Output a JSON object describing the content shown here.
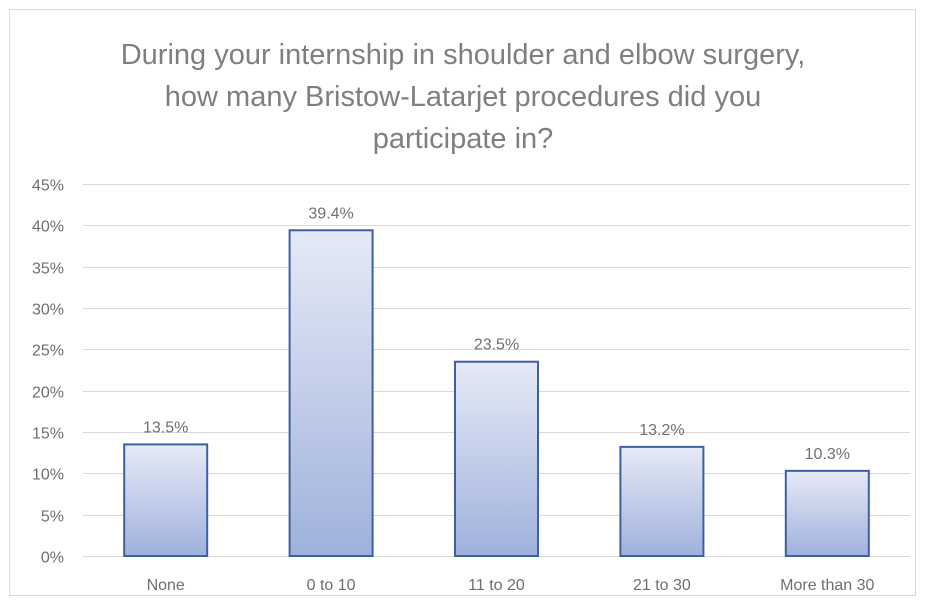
{
  "chart_data": {
    "type": "bar",
    "title_lines": [
      "During your internship in shoulder and elbow surgery,",
      "how many Bristow-Latarjet procedures did you",
      "participate in?"
    ],
    "categories": [
      "None",
      "0 to 10",
      "11 to 20",
      "21 to 30",
      "More than 30"
    ],
    "values": [
      13.5,
      39.4,
      23.5,
      13.2,
      10.3
    ],
    "data_labels": [
      "13.5%",
      "39.4%",
      "23.5%",
      "13.2%",
      "10.3%"
    ],
    "y_ticks": [
      "0%",
      "5%",
      "10%",
      "15%",
      "20%",
      "25%",
      "30%",
      "35%",
      "40%",
      "45%"
    ],
    "ylim": [
      0,
      45
    ],
    "grid": true,
    "legend": "none",
    "colors": {
      "bar_fill_top": "#e6eaf6",
      "bar_fill_bottom": "#9fb1dc",
      "bar_stroke": "#3e5fa3",
      "grid": "#d9d9d9",
      "text": "#6f6f6f",
      "title": "#7f7f7f",
      "frame": "#d9d9d9"
    }
  }
}
